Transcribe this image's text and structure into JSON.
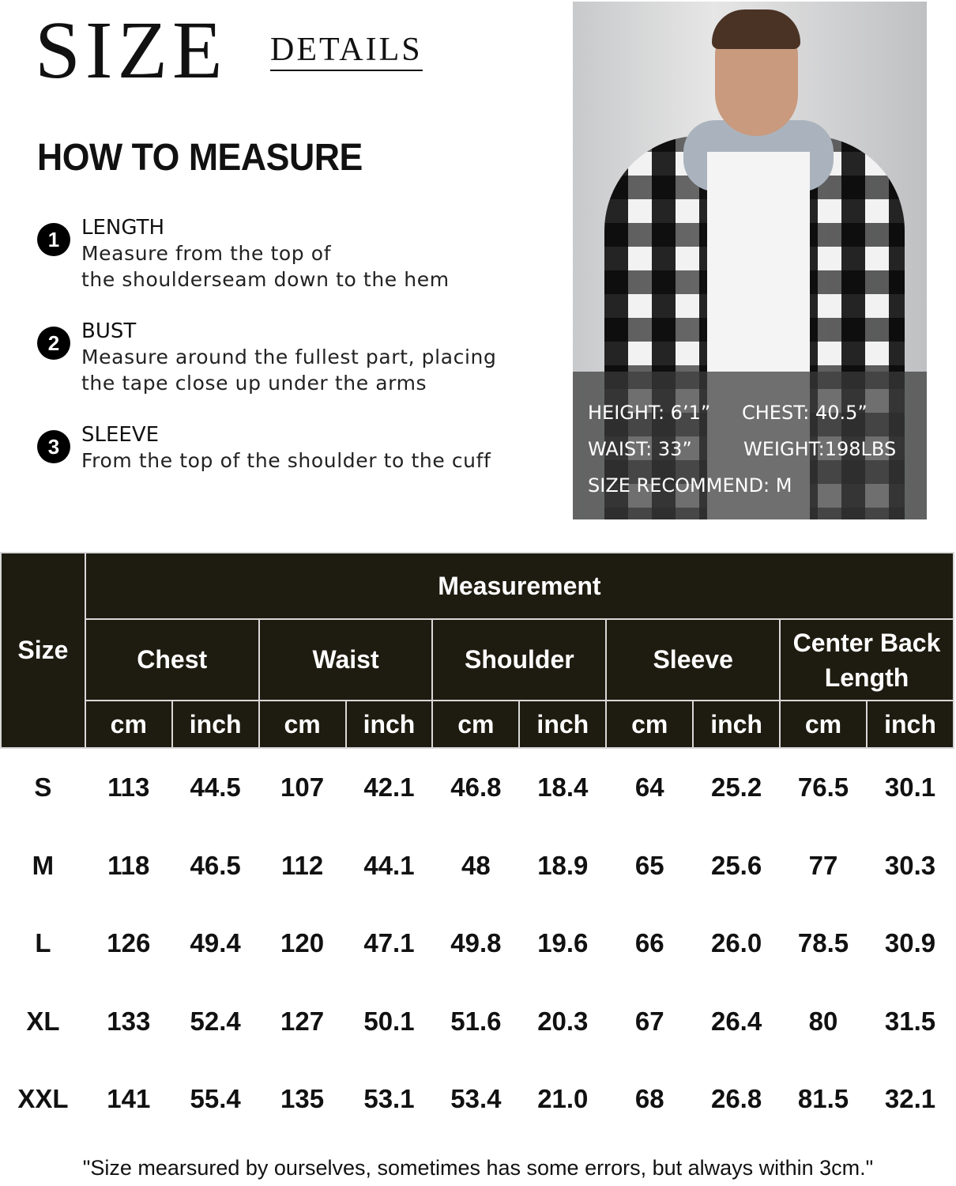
{
  "header": {
    "title_main": "SIZE",
    "title_sub": "DETAILS",
    "section_title": "HOW TO MEASURE"
  },
  "steps": [
    {
      "number": "1",
      "label": "LENGTH",
      "desc_line1": "Measure from the top of",
      "desc_line2": "the shoulderseam down to the hem"
    },
    {
      "number": "2",
      "label": "BUST",
      "desc_line1": "Measure around the fullest part, placing",
      "desc_line2": "the tape close up under the arms"
    },
    {
      "number": "3",
      "label": "SLEEVE",
      "desc_line1": "From the top of the shoulder to the cuff",
      "desc_line2": ""
    }
  ],
  "model": {
    "height": "HEIGHT: 6’1”",
    "chest": "CHEST: 40.5”",
    "waist": "WAIST: 33”",
    "weight": "WEIGHT:198LBS",
    "recommend": "SIZE RECOMMEND: M"
  },
  "table": {
    "size_header": "Size",
    "measurement_header": "Measurement",
    "groups": [
      "Chest",
      "Waist",
      "Shoulder",
      "Sleeve",
      "Center Back Length"
    ],
    "units": [
      "cm",
      "inch",
      "cm",
      "inch",
      "cm",
      "inch",
      "cm",
      "inch",
      "cm",
      "inch"
    ],
    "rows": [
      [
        "S",
        "113",
        "44.5",
        "107",
        "42.1",
        "46.8",
        "18.4",
        "64",
        "25.2",
        "76.5",
        "30.1"
      ],
      [
        "M",
        "118",
        "46.5",
        "112",
        "44.1",
        "48",
        "18.9",
        "65",
        "25.6",
        "77",
        "30.3"
      ],
      [
        "L",
        "126",
        "49.4",
        "120",
        "47.1",
        "49.8",
        "19.6",
        "66",
        "26.0",
        "78.5",
        "30.9"
      ],
      [
        "XL",
        "133",
        "52.4",
        "127",
        "50.1",
        "51.6",
        "20.3",
        "67",
        "26.4",
        "80",
        "31.5"
      ],
      [
        "XXL",
        "141",
        "55.4",
        "135",
        "53.1",
        "53.4",
        "21.0",
        "68",
        "26.8",
        "81.5",
        "32.1"
      ]
    ]
  },
  "footnote": "\"Size mearsured by ourselves, sometimes has some errors, but always within 3cm.\"",
  "colors": {
    "header_bg": "#1e1b10",
    "text": "#111111"
  }
}
